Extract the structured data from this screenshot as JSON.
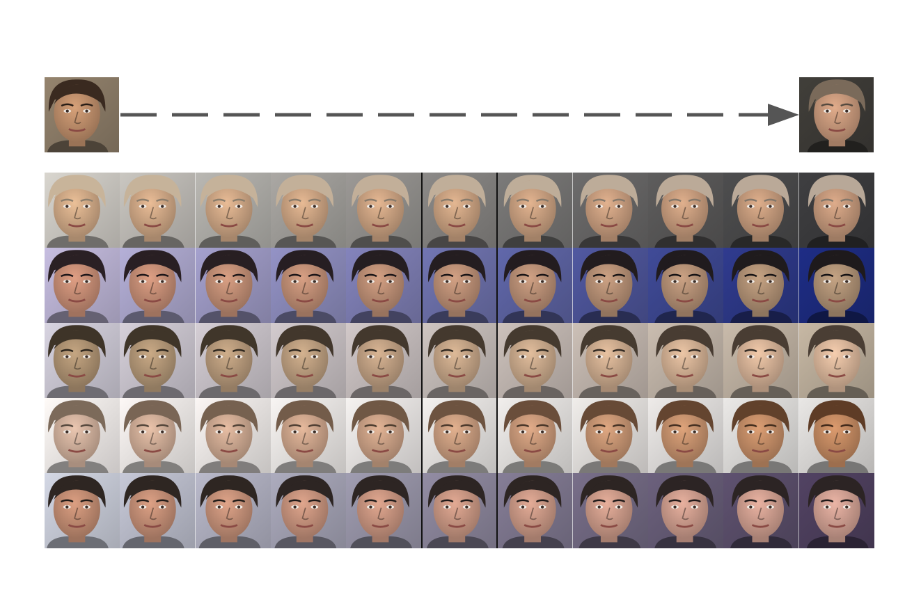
{
  "figure": {
    "grid_rows": 5,
    "grid_cols": 11,
    "divider_columns": [
      5,
      6
    ],
    "source": {
      "skin": "#c0906c",
      "hair": "#3a2a20",
      "bg": "#8a7a66"
    },
    "target": {
      "skin": "#c99a7c",
      "hair": "#7a6a5a",
      "bg": "#3c3a36"
    },
    "rows": [
      {
        "start": {
          "skin": "#d2ab88",
          "hair": "#c8b49a",
          "bg": "#c9c6c0"
        },
        "end": {
          "skin": "#c69a7c",
          "hair": "#b8a898",
          "bg": "#3a3a3c"
        }
      },
      {
        "start": {
          "skin": "#c88e76",
          "hair": "#2a2024",
          "bg": "#b8b0d0"
        },
        "end": {
          "skin": "#b09276",
          "hair": "#1e1a1c",
          "bg": "#1c2a7c"
        }
      },
      {
        "start": {
          "skin": "#b09474",
          "hair": "#3e3428",
          "bg": "#c8c4d0"
        },
        "end": {
          "skin": "#dcb89c",
          "hair": "#4a3e34",
          "bg": "#b8aa98"
        }
      },
      {
        "start": {
          "skin": "#d2b29e",
          "hair": "#7c6a5a",
          "bg": "#ece8e6"
        },
        "end": {
          "skin": "#c48a62",
          "hair": "#5e3c26",
          "bg": "#d8d6d4"
        }
      },
      {
        "start": {
          "skin": "#c48e74",
          "hair": "#2e2622",
          "bg": "#c4c8d4"
        },
        "end": {
          "skin": "#d2a294",
          "hair": "#2c2424",
          "bg": "#4c3e5c"
        }
      }
    ]
  }
}
